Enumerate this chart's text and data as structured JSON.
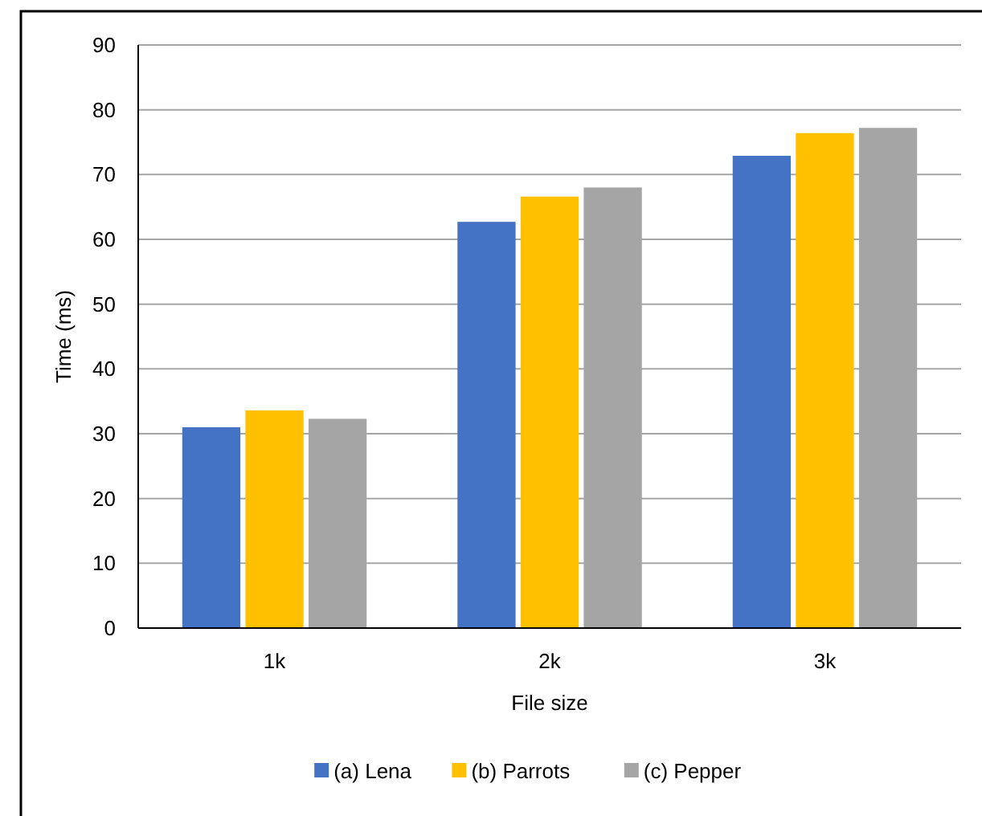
{
  "chart_data": {
    "type": "bar",
    "xlabel": "File size",
    "ylabel": "Time (ms)",
    "categories": [
      "1k",
      "2k",
      "3k"
    ],
    "series": [
      {
        "name": "(a) Lena",
        "color": "#4472c4",
        "values": [
          31,
          62.7,
          72.9
        ]
      },
      {
        "name": "(b) Parrots",
        "color": "#ffc000",
        "values": [
          33.6,
          66.6,
          76.4
        ]
      },
      {
        "name": "(c) Pepper",
        "color": "#a5a5a5",
        "values": [
          32.3,
          68,
          77.2
        ]
      }
    ],
    "ylim": [
      0,
      90
    ],
    "yticks": [
      0,
      10,
      20,
      30,
      40,
      50,
      60,
      70,
      80,
      90
    ],
    "grid": "y",
    "legend": "bottom"
  }
}
